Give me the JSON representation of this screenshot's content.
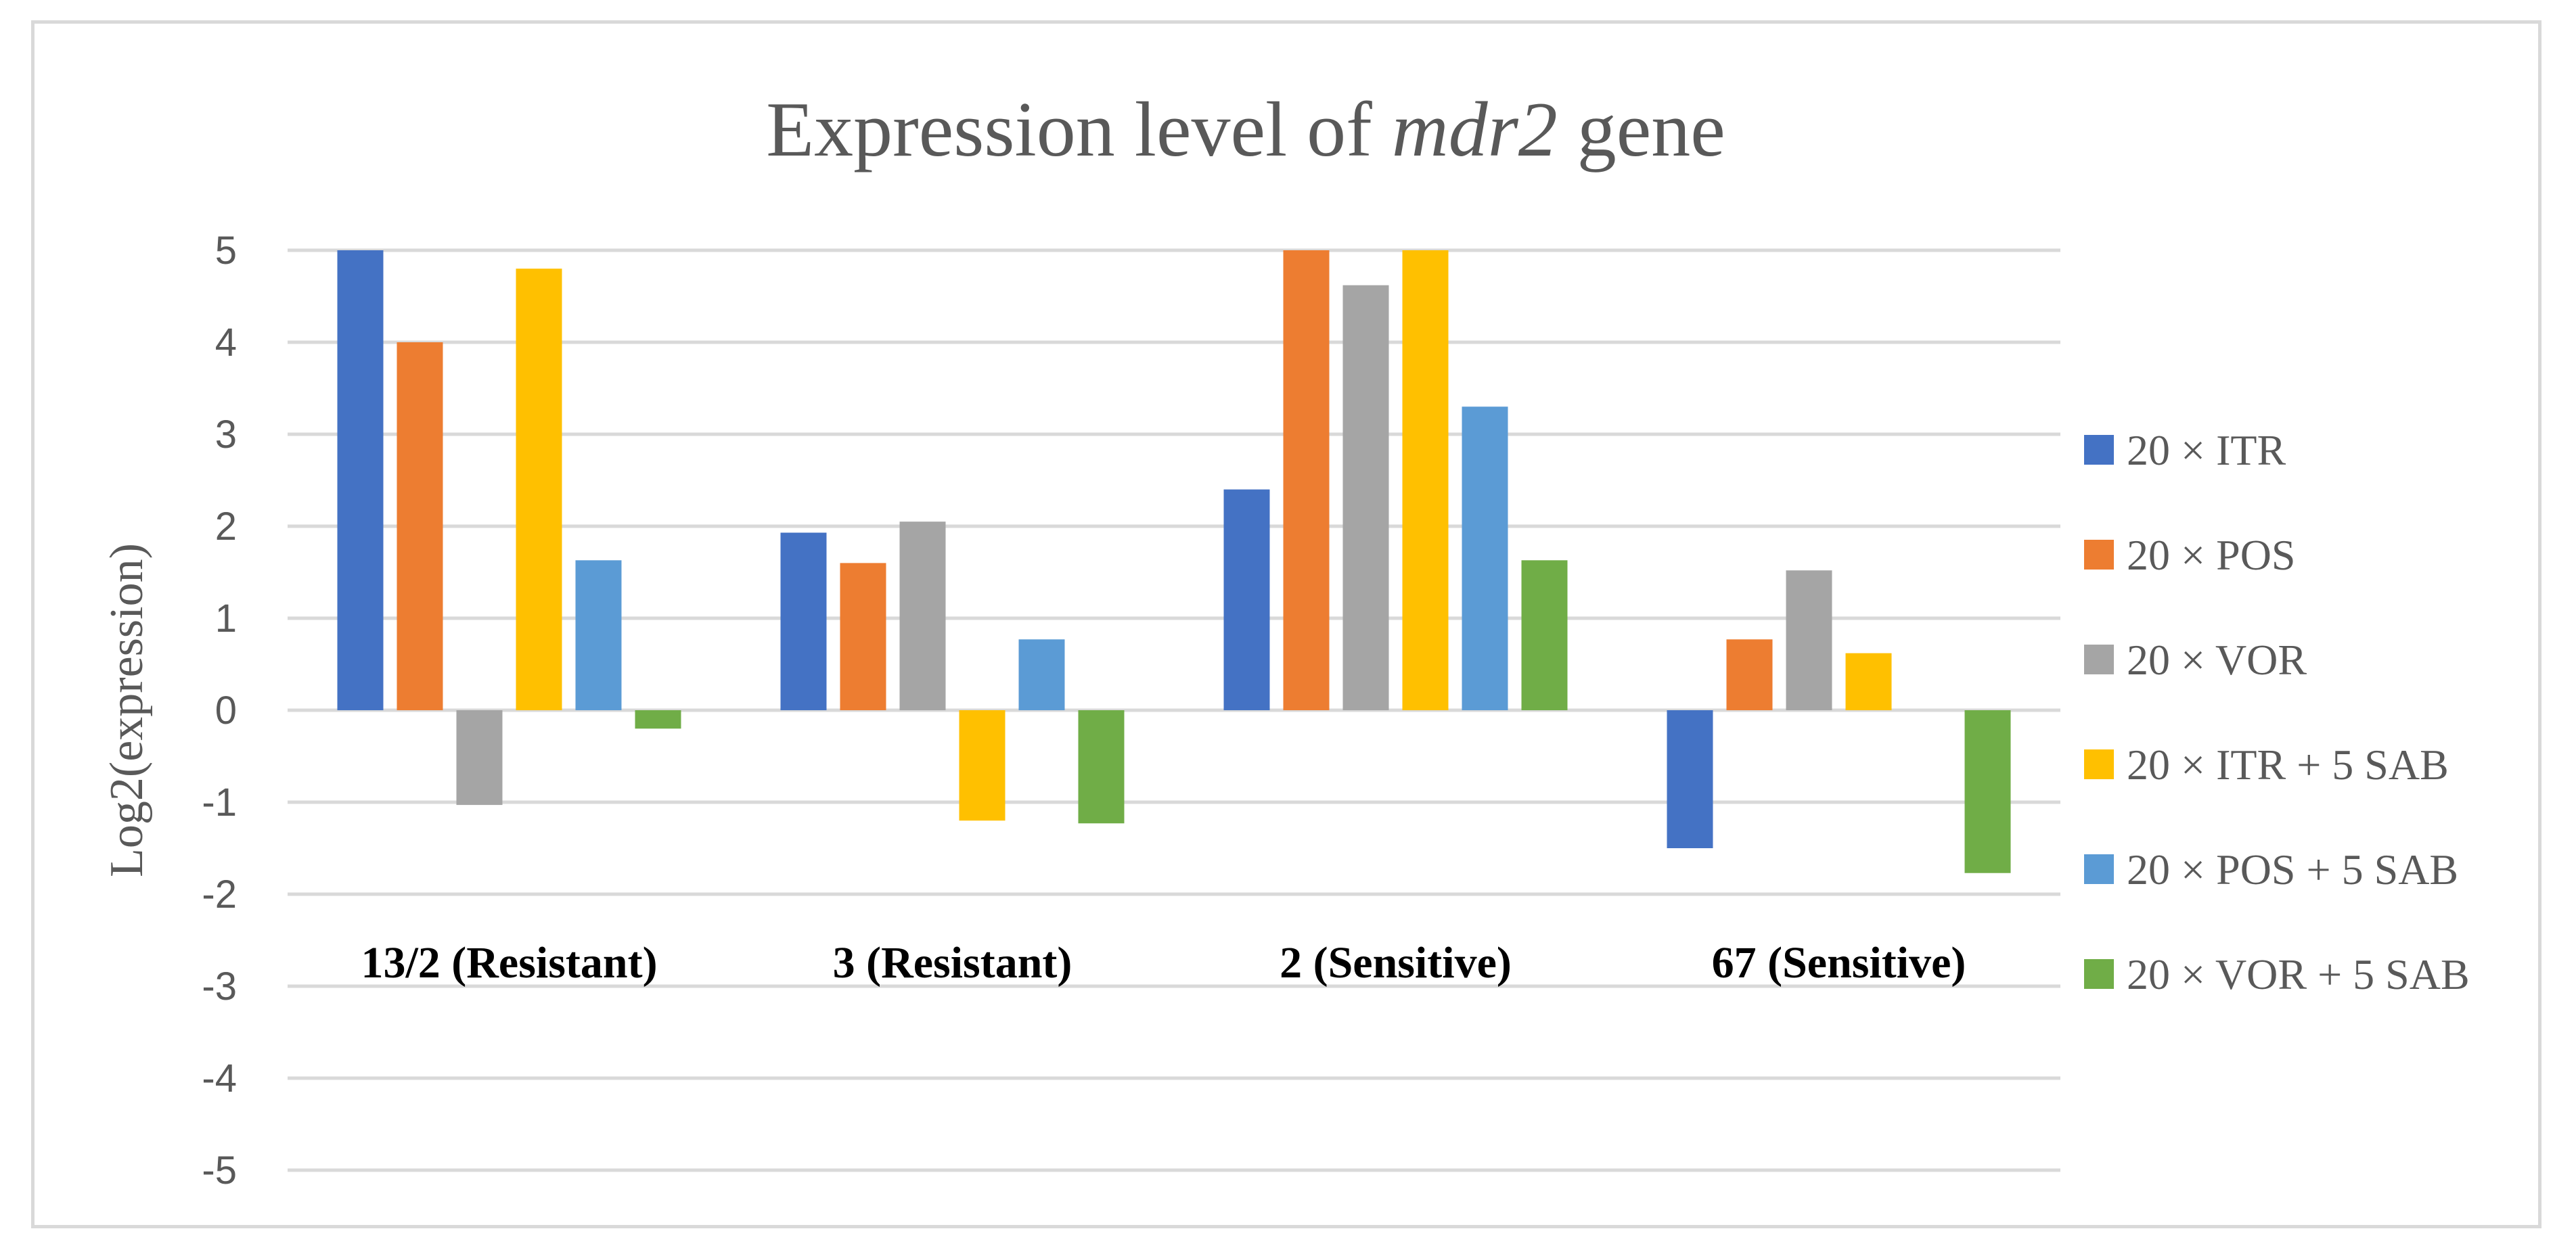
{
  "chart_data": {
    "type": "bar",
    "title": "Expression level of mdr2 gene",
    "title_parts": {
      "before": "Expression level of ",
      "italic": "mdr2",
      "after": " gene"
    },
    "xlabel": "",
    "ylabel": "Log2(expression)",
    "ylim": [
      -5,
      5
    ],
    "yticks": [
      "5",
      "4",
      "3",
      "2",
      "1",
      "0",
      "-1",
      "-2",
      "-3",
      "-4",
      "-5"
    ],
    "ytick_values": [
      5,
      4,
      3,
      2,
      1,
      0,
      -1,
      -2,
      -3,
      -4,
      -5
    ],
    "grid": true,
    "legend_position": "right",
    "categories": [
      "13/2 (Resistant)",
      "3 (Resistant)",
      "2 (Sensitive)",
      "67 (Sensitive)"
    ],
    "series": [
      {
        "name": "20 × ITR",
        "color": "#4472C4",
        "values": [
          5.0,
          1.93,
          2.4,
          -1.5
        ]
      },
      {
        "name": "20 × POS",
        "color": "#ED7D31",
        "values": [
          4.0,
          1.6,
          5.0,
          0.77
        ]
      },
      {
        "name": "20 × VOR",
        "color": "#A5A5A5",
        "values": [
          -1.03,
          2.05,
          4.62,
          1.52
        ]
      },
      {
        "name": "20 × ITR + 5 SAB",
        "color": "#FFC000",
        "values": [
          4.8,
          -1.2,
          5.0,
          0.62
        ]
      },
      {
        "name": "20 × POS + 5 SAB",
        "color": "#5B9BD5",
        "values": [
          1.63,
          0.77,
          3.3,
          0.0
        ]
      },
      {
        "name": "20 × VOR + 5 SAB",
        "color": "#70AD47",
        "values": [
          -0.2,
          -1.23,
          1.63,
          -1.77
        ]
      }
    ]
  }
}
